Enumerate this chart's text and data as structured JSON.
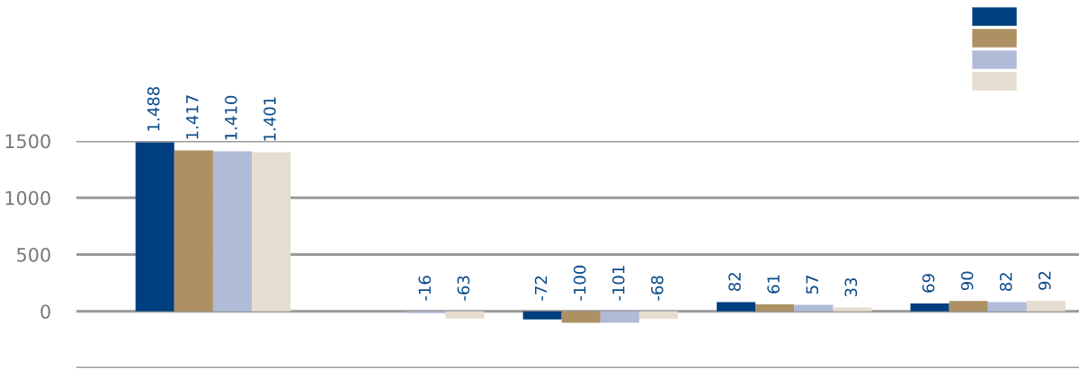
{
  "chart_data": {
    "type": "bar",
    "categories": [
      null,
      null,
      null,
      null,
      null
    ],
    "series": [
      {
        "color": "#003f7f",
        "values": [
          1488,
          null,
          -72,
          82,
          69
        ],
        "value_labels": [
          "1.488",
          null,
          "-72",
          "82",
          "69"
        ]
      },
      {
        "color": "#ad9163",
        "values": [
          1417,
          null,
          -100,
          61,
          90
        ],
        "value_labels": [
          "1.417",
          null,
          "-100",
          "61",
          "90"
        ]
      },
      {
        "color": "#b0bbd8",
        "values": [
          1410,
          -16,
          -101,
          57,
          82
        ],
        "value_labels": [
          "1.410",
          "-16",
          "-101",
          "57",
          "82"
        ]
      },
      {
        "color": "#e6ddd1",
        "values": [
          1401,
          -63,
          -68,
          33,
          92
        ],
        "value_labels": [
          "1.401",
          "-63",
          "-68",
          "33",
          "92"
        ]
      }
    ],
    "ylim": [
      -500,
      1500
    ],
    "yticks": [
      {
        "value": -500,
        "label": null
      },
      0,
      500,
      1000,
      1500
    ],
    "grid": "y"
  }
}
